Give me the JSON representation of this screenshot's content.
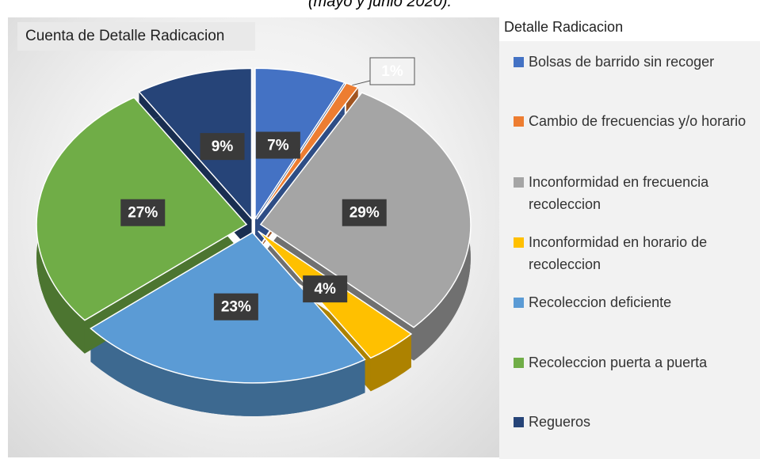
{
  "chart_data": {
    "type": "pie",
    "page_title": "(mayo y junio 2020).",
    "title": "Cuenta de Detalle Radicacion",
    "legend_title": "Detalle Radicacion",
    "categories": [
      "Bolsas de barrido sin recoger",
      "Cambio de frecuencias y/o horario",
      "Inconformidad en frecuencia recoleccion",
      "Inconformidad en horario de recoleccion",
      "Recoleccion deficiente",
      "Recoleccion puerta a puerta",
      "Regueros"
    ],
    "values": [
      7,
      1,
      29,
      4,
      23,
      27,
      9
    ],
    "value_labels": [
      "7%",
      "1%",
      "29%",
      "4%",
      "23%",
      "27%",
      "9%"
    ],
    "colors": [
      "#4472c4",
      "#ed7d31",
      "#a5a5a5",
      "#ffc000",
      "#5b9bd5",
      "#70ad47",
      "#264478"
    ],
    "legend_position": "right"
  }
}
